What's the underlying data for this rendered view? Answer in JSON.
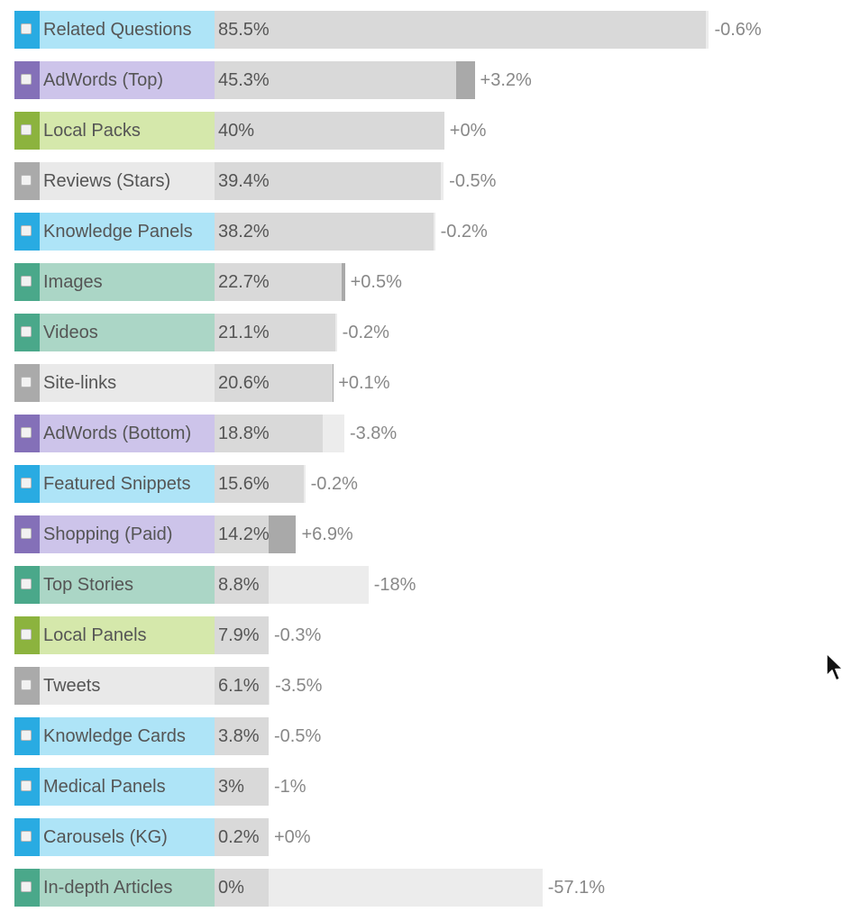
{
  "chart_data": {
    "type": "bar",
    "orientation": "horizontal",
    "xlim": [
      0,
      100
    ],
    "categories": [
      "Related Questions",
      "AdWords (Top)",
      "Local Packs",
      "Reviews (Stars)",
      "Knowledge Panels",
      "Images",
      "Videos",
      "Site-links",
      "AdWords (Bottom)",
      "Featured Snippets",
      "Shopping (Paid)",
      "Top Stories",
      "Local Panels",
      "Tweets",
      "Knowledge Cards",
      "Medical Panels",
      "Carousels (KG)",
      "In-depth Articles"
    ],
    "values": [
      85.5,
      45.3,
      40,
      39.4,
      38.2,
      22.7,
      21.1,
      20.6,
      18.8,
      15.6,
      14.2,
      8.8,
      7.9,
      6.1,
      3.8,
      3,
      0.2,
      0
    ],
    "changes": [
      -0.6,
      3.2,
      0,
      -0.5,
      -0.2,
      0.5,
      -0.2,
      0.1,
      -3.8,
      -0.2,
      6.9,
      -18,
      -0.3,
      -3.5,
      -0.5,
      -1,
      0,
      -57.1
    ],
    "value_labels": [
      "85.5%",
      "45.3%",
      "40%",
      "39.4%",
      "38.2%",
      "22.7%",
      "21.1%",
      "20.6%",
      "18.8%",
      "15.6%",
      "14.2%",
      "8.8%",
      "7.9%",
      "6.1%",
      "3.8%",
      "3%",
      "0.2%",
      "0%"
    ],
    "change_labels": [
      "-0.6%",
      "+3.2%",
      "+0%",
      "-0.5%",
      "-0.2%",
      "+0.5%",
      "-0.2%",
      "+0.1%",
      "-3.8%",
      "-0.2%",
      "+6.9%",
      "-18%",
      "-0.3%",
      "-3.5%",
      "-0.5%",
      "-1%",
      "+0%",
      "-57.1%"
    ],
    "groups": [
      "blue",
      "purple",
      "green",
      "gray",
      "blue",
      "teal",
      "teal",
      "gray",
      "purple",
      "blue",
      "purple",
      "teal",
      "green",
      "gray",
      "blue",
      "blue",
      "blue",
      "teal"
    ]
  },
  "colors": {
    "blue": {
      "swatch": "#29abe2",
      "label_bg": "#aee4f7"
    },
    "purple": {
      "swatch": "#8470b8",
      "label_bg": "#cdc4ea"
    },
    "green": {
      "swatch": "#8cb33e",
      "label_bg": "#d5e8ab"
    },
    "gray": {
      "swatch": "#aaaaaa",
      "label_bg": "#e9e9e9"
    },
    "teal": {
      "swatch": "#4aa88a",
      "label_bg": "#abd6c6"
    },
    "bar": "#d9d9d9",
    "bar_increase": "#a9a9a9",
    "bar_decrease": "#ececec"
  },
  "icons": {
    "cursor": "mouse-pointer-icon",
    "row_toggle": "checkbox-icon"
  }
}
